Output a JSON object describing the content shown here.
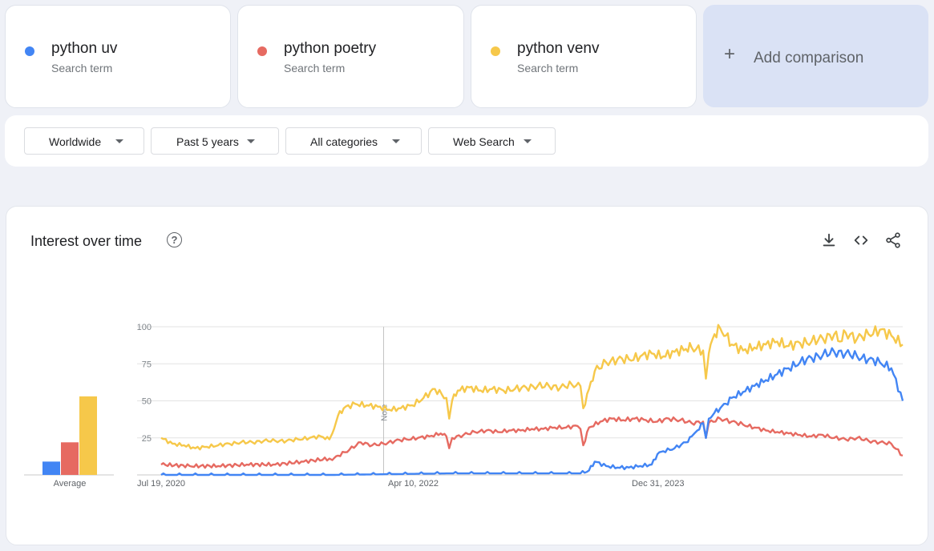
{
  "colors": {
    "uv": "#4285f4",
    "poetry": "#ea4335",
    "venv": "#fbbc04"
  },
  "terms": [
    {
      "name": "python uv",
      "sub": "Search term",
      "color": "#4285f4"
    },
    {
      "name": "python poetry",
      "sub": "Search term",
      "color": "#e66a61"
    },
    {
      "name": "python venv",
      "sub": "Search term",
      "color": "#f6c84a"
    }
  ],
  "add_comparison": "Add comparison",
  "filters": {
    "region": "Worldwide",
    "period": "Past 5 years",
    "category": "All categories",
    "search_type": "Web Search"
  },
  "panel": {
    "title": "Interest over time",
    "help_glyph": "?",
    "icons": [
      "download-icon",
      "embed-code-icon",
      "share-icon"
    ]
  },
  "chart_data": {
    "type": "line",
    "x_start": "Jul 19, 2020",
    "x_end": "Jul 2025",
    "tick_labels": [
      {
        "label": "Jul 19, 2020",
        "frac": 0.0
      },
      {
        "label": "Apr 10, 2022",
        "frac": 0.34
      },
      {
        "label": "Dec 31, 2023",
        "frac": 0.67
      }
    ],
    "y_ticks": [
      25,
      50,
      75,
      100
    ],
    "ylim": [
      0,
      100
    ],
    "note": {
      "label": "Note",
      "frac": 0.3
    },
    "average": {
      "label": "Average",
      "values": {
        "python uv": 9,
        "python poetry": 22,
        "python venv": 53
      }
    },
    "series": [
      {
        "name": "python venv",
        "color": "#f6c84a",
        "points": [
          [
            0.0,
            25
          ],
          [
            0.02,
            21
          ],
          [
            0.04,
            20
          ],
          [
            0.06,
            18
          ],
          [
            0.08,
            19
          ],
          [
            0.1,
            20
          ],
          [
            0.12,
            21
          ],
          [
            0.14,
            22
          ],
          [
            0.16,
            22
          ],
          [
            0.18,
            23
          ],
          [
            0.2,
            23
          ],
          [
            0.22,
            23
          ],
          [
            0.24,
            24
          ],
          [
            0.26,
            25
          ],
          [
            0.28,
            26
          ],
          [
            0.295,
            24
          ],
          [
            0.3,
            28
          ],
          [
            0.31,
            40
          ],
          [
            0.32,
            45
          ],
          [
            0.34,
            48
          ],
          [
            0.36,
            47
          ],
          [
            0.38,
            46
          ],
          [
            0.4,
            44
          ],
          [
            0.42,
            45
          ],
          [
            0.44,
            47
          ],
          [
            0.46,
            52
          ],
          [
            0.48,
            58
          ],
          [
            0.5,
            52
          ],
          [
            0.505,
            38
          ],
          [
            0.51,
            50
          ],
          [
            0.52,
            57
          ],
          [
            0.54,
            59
          ],
          [
            0.56,
            57
          ],
          [
            0.58,
            58
          ],
          [
            0.6,
            57
          ],
          [
            0.62,
            58
          ],
          [
            0.64,
            59
          ],
          [
            0.66,
            60
          ],
          [
            0.68,
            60
          ],
          [
            0.7,
            59
          ],
          [
            0.72,
            61
          ],
          [
            0.735,
            60
          ],
          [
            0.74,
            45
          ],
          [
            0.75,
            58
          ],
          [
            0.76,
            70
          ],
          [
            0.78,
            76
          ],
          [
            0.8,
            78
          ],
          [
            0.82,
            78
          ],
          [
            0.84,
            80
          ],
          [
            0.86,
            82
          ],
          [
            0.88,
            80
          ],
          [
            0.9,
            83
          ],
          [
            0.92,
            85
          ],
          [
            0.93,
            86
          ],
          [
            0.95,
            84
          ],
          [
            0.955,
            65
          ],
          [
            0.96,
            82
          ],
          [
            0.97,
            95
          ],
          [
            0.98,
            99
          ],
          [
            0.99,
            94
          ],
          [
            1.0,
            88
          ],
          [
            1.02,
            84
          ],
          [
            1.04,
            86
          ],
          [
            1.06,
            88
          ],
          [
            1.08,
            90
          ],
          [
            1.1,
            87
          ],
          [
            1.12,
            89
          ],
          [
            1.14,
            90
          ],
          [
            1.16,
            92
          ],
          [
            1.18,
            95
          ],
          [
            1.19,
            90
          ],
          [
            1.2,
            96
          ],
          [
            1.22,
            92
          ],
          [
            1.24,
            95
          ],
          [
            1.26,
            98
          ],
          [
            1.28,
            94
          ],
          [
            1.3,
            88
          ]
        ]
      },
      {
        "name": "python poetry",
        "color": "#e66a61",
        "points": [
          [
            0.0,
            7
          ],
          [
            0.05,
            6
          ],
          [
            0.1,
            6
          ],
          [
            0.15,
            7
          ],
          [
            0.2,
            7
          ],
          [
            0.25,
            9
          ],
          [
            0.295,
            11
          ],
          [
            0.3,
            10
          ],
          [
            0.31,
            13
          ],
          [
            0.33,
            17
          ],
          [
            0.35,
            22
          ],
          [
            0.37,
            20
          ],
          [
            0.39,
            21
          ],
          [
            0.41,
            23
          ],
          [
            0.43,
            24
          ],
          [
            0.45,
            25
          ],
          [
            0.47,
            26
          ],
          [
            0.49,
            28
          ],
          [
            0.5,
            26
          ],
          [
            0.505,
            18
          ],
          [
            0.51,
            25
          ],
          [
            0.53,
            27
          ],
          [
            0.55,
            29
          ],
          [
            0.57,
            30
          ],
          [
            0.59,
            29
          ],
          [
            0.61,
            30
          ],
          [
            0.63,
            30
          ],
          [
            0.65,
            31
          ],
          [
            0.67,
            31
          ],
          [
            0.69,
            32
          ],
          [
            0.71,
            32
          ],
          [
            0.73,
            33
          ],
          [
            0.735,
            31
          ],
          [
            0.74,
            20
          ],
          [
            0.75,
            32
          ],
          [
            0.77,
            36
          ],
          [
            0.79,
            38
          ],
          [
            0.81,
            37
          ],
          [
            0.83,
            38
          ],
          [
            0.85,
            37
          ],
          [
            0.87,
            36
          ],
          [
            0.89,
            38
          ],
          [
            0.91,
            37
          ],
          [
            0.93,
            35
          ],
          [
            0.95,
            36
          ],
          [
            0.955,
            25
          ],
          [
            0.96,
            35
          ],
          [
            0.98,
            38
          ],
          [
            1.0,
            36
          ],
          [
            1.02,
            34
          ],
          [
            1.04,
            32
          ],
          [
            1.06,
            30
          ],
          [
            1.08,
            29
          ],
          [
            1.1,
            28
          ],
          [
            1.12,
            27
          ],
          [
            1.14,
            26
          ],
          [
            1.16,
            27
          ],
          [
            1.18,
            25
          ],
          [
            1.2,
            24
          ],
          [
            1.22,
            25
          ],
          [
            1.24,
            23
          ],
          [
            1.26,
            22
          ],
          [
            1.28,
            21
          ],
          [
            1.3,
            13
          ]
        ]
      },
      {
        "name": "python uv",
        "color": "#4285f4",
        "points": [
          [
            0.0,
            0
          ],
          [
            0.3,
            0
          ],
          [
            0.5,
            1
          ],
          [
            0.7,
            1
          ],
          [
            0.735,
            1
          ],
          [
            0.75,
            3
          ],
          [
            0.76,
            9
          ],
          [
            0.78,
            6
          ],
          [
            0.8,
            5
          ],
          [
            0.82,
            5
          ],
          [
            0.84,
            6
          ],
          [
            0.86,
            7
          ],
          [
            0.87,
            14
          ],
          [
            0.88,
            16
          ],
          [
            0.9,
            18
          ],
          [
            0.92,
            22
          ],
          [
            0.93,
            26
          ],
          [
            0.94,
            30
          ],
          [
            0.95,
            35
          ],
          [
            0.955,
            25
          ],
          [
            0.96,
            38
          ],
          [
            0.97,
            42
          ],
          [
            0.98,
            45
          ],
          [
            0.99,
            48
          ],
          [
            1.0,
            52
          ],
          [
            1.02,
            56
          ],
          [
            1.04,
            60
          ],
          [
            1.06,
            64
          ],
          [
            1.08,
            68
          ],
          [
            1.1,
            72
          ],
          [
            1.12,
            76
          ],
          [
            1.14,
            79
          ],
          [
            1.16,
            81
          ],
          [
            1.18,
            83
          ],
          [
            1.2,
            82
          ],
          [
            1.22,
            80
          ],
          [
            1.24,
            78
          ],
          [
            1.26,
            76
          ],
          [
            1.28,
            72
          ],
          [
            1.3,
            50
          ]
        ]
      }
    ]
  }
}
